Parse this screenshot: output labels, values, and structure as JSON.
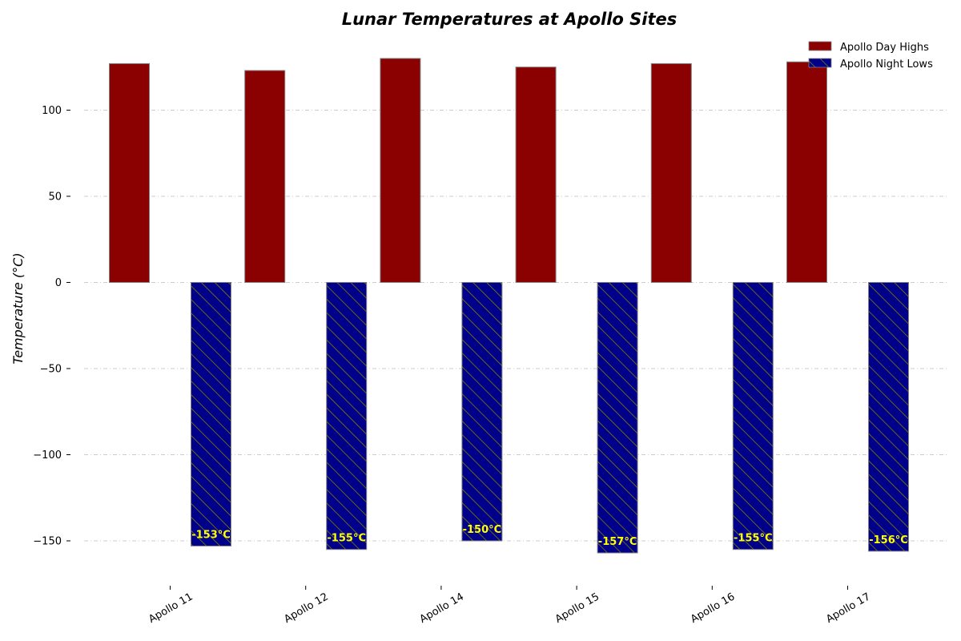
{
  "chart_data": {
    "type": "bar",
    "title": "Lunar Temperatures at Apollo Sites",
    "xlabel": "",
    "ylabel": "Temperature (°C)",
    "categories": [
      "Apollo 11",
      "Apollo 12",
      "Apollo 14",
      "Apollo 15",
      "Apollo 16",
      "Apollo 17"
    ],
    "series": [
      {
        "name": "Apollo Day Highs",
        "values": [
          127,
          123,
          130,
          125,
          127,
          128
        ],
        "color": "#8b0000"
      },
      {
        "name": "Apollo Night Lows",
        "values": [
          -153,
          -155,
          -150,
          -157,
          -155,
          -156
        ],
        "color": "#00008b",
        "hatch": true,
        "data_labels": [
          "-153°C",
          "-155°C",
          "-150°C",
          "-157°C",
          "-155°C",
          "-156°C"
        ]
      }
    ],
    "ylim": [
      -170,
      143
    ],
    "yticks": [
      -150,
      -100,
      -50,
      0,
      50,
      100
    ],
    "ytick_labels": [
      "−150",
      "−100",
      "−50",
      "0",
      "50",
      "100"
    ],
    "grid": true,
    "legend_position": "top-right",
    "hatch_color": "#808000",
    "edge_color": "#808080",
    "label_color": "#ffff00"
  }
}
